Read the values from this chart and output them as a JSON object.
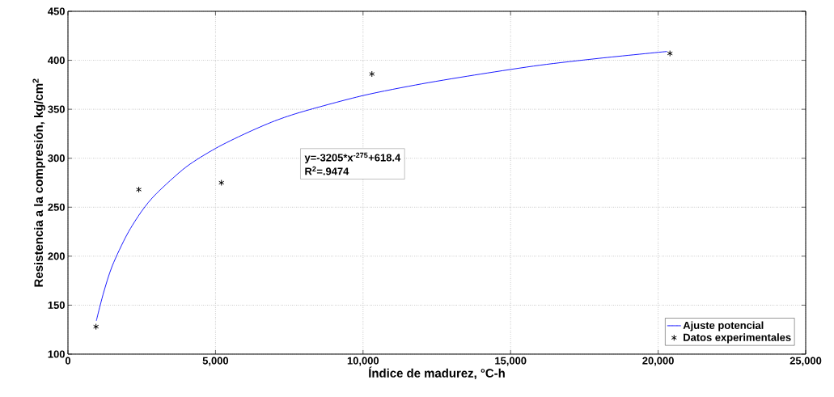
{
  "chart_data": {
    "type": "scatter",
    "xlabel": "Índice de madurez, °C-h",
    "ylabel": "Resistencia a la compresión, kg/cm$^{2}$",
    "annotations": [
      "y=-3205*x$^{-275}$+618.4",
      "R$^{2}$=.9474"
    ],
    "xlim": [
      0,
      25000
    ],
    "ylim": [
      100,
      450
    ],
    "xticks": [
      0,
      {
        "value": 5000,
        "label": "5,000"
      },
      {
        "value": 10000,
        "label": "10,000"
      },
      {
        "value": 15000,
        "label": "15,000"
      },
      {
        "value": 20000,
        "label": "20,000"
      },
      {
        "value": 25000,
        "label": "25,000"
      }
    ],
    "yticks": [
      100,
      150,
      200,
      250,
      300,
      350,
      400,
      450
    ],
    "grid": true,
    "legend": "bottom right",
    "series": [
      {
        "name": "Ajuste potencial",
        "type": "line",
        "color": "#0000ff",
        "marker": "none",
        "x": [
          961,
          1200,
          1500,
          2000,
          2500,
          3000,
          4000,
          5000,
          6000,
          7000,
          8000,
          10000,
          12000,
          14000,
          16000,
          18000,
          20300
        ],
        "values": [
          134,
          162,
          190,
          222,
          246,
          264,
          291,
          310,
          325,
          338,
          348,
          364,
          376,
          386,
          395,
          402,
          409
        ]
      },
      {
        "name": "Datos experimentales",
        "color": "#000000",
        "marker": "cross",
        "x": [
          950,
          2400,
          5200,
          10300,
          20400
        ],
        "values": [
          128,
          268,
          275,
          386,
          407
        ]
      }
    ]
  }
}
